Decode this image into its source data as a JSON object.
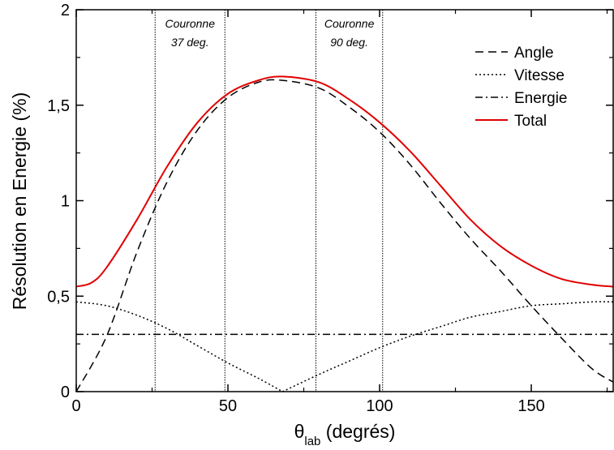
{
  "chart_data": {
    "type": "line",
    "xlabel_symbol": "θ",
    "xlabel_sub": "lab",
    "xlabel_rest": " (degrés)",
    "ylabel": "Résolution en Energie (%)",
    "xlim": [
      0,
      177
    ],
    "ylim": [
      0,
      2
    ],
    "xticks": [
      0,
      50,
      100,
      150
    ],
    "xtick_labels": [
      "0",
      "50",
      "100",
      "150"
    ],
    "yticks": [
      0,
      0.5,
      1,
      1.5,
      2
    ],
    "ytick_labels": [
      "0",
      "0,5",
      "1",
      "1,5",
      "2"
    ],
    "grid": false,
    "legend_position": "top-right",
    "annotations": [
      {
        "line1": "Couronne",
        "line2": "37 deg.",
        "x_bounds": [
          26,
          49
        ]
      },
      {
        "line1": "Couronne",
        "line2": "90 deg.",
        "x_bounds": [
          79,
          101
        ]
      }
    ],
    "series": [
      {
        "name": "Angle",
        "style": "dashed",
        "color": "#000000",
        "x": [
          0,
          10,
          20,
          30,
          40,
          50,
          60,
          68,
          80,
          90,
          100,
          110,
          120,
          130,
          140,
          150,
          160,
          170,
          177
        ],
        "y": [
          0.0,
          0.29,
          0.73,
          1.1,
          1.37,
          1.54,
          1.62,
          1.63,
          1.59,
          1.49,
          1.36,
          1.19,
          0.99,
          0.8,
          0.63,
          0.45,
          0.28,
          0.12,
          0.05
        ]
      },
      {
        "name": "Vitesse",
        "style": "dotted",
        "color": "#000000",
        "x": [
          0,
          10,
          20,
          30,
          40,
          50,
          60,
          68,
          80,
          90,
          100,
          110,
          120,
          130,
          140,
          150,
          160,
          170,
          177
        ],
        "y": [
          0.47,
          0.45,
          0.4,
          0.33,
          0.24,
          0.15,
          0.07,
          0.0,
          0.09,
          0.16,
          0.23,
          0.29,
          0.34,
          0.39,
          0.42,
          0.45,
          0.46,
          0.47,
          0.47
        ]
      },
      {
        "name": "Energie",
        "style": "dashdot",
        "color": "#000000",
        "x": [
          0,
          177
        ],
        "y": [
          0.3,
          0.3
        ]
      },
      {
        "name": "Total",
        "style": "solid",
        "color": "#e00000",
        "x": [
          0,
          5,
          10,
          20,
          30,
          40,
          50,
          60,
          68,
          80,
          90,
          100,
          110,
          120,
          130,
          140,
          150,
          160,
          170,
          177
        ],
        "y": [
          0.55,
          0.57,
          0.65,
          0.9,
          1.18,
          1.41,
          1.56,
          1.63,
          1.65,
          1.62,
          1.53,
          1.41,
          1.26,
          1.08,
          0.9,
          0.76,
          0.66,
          0.59,
          0.56,
          0.55
        ]
      }
    ]
  }
}
